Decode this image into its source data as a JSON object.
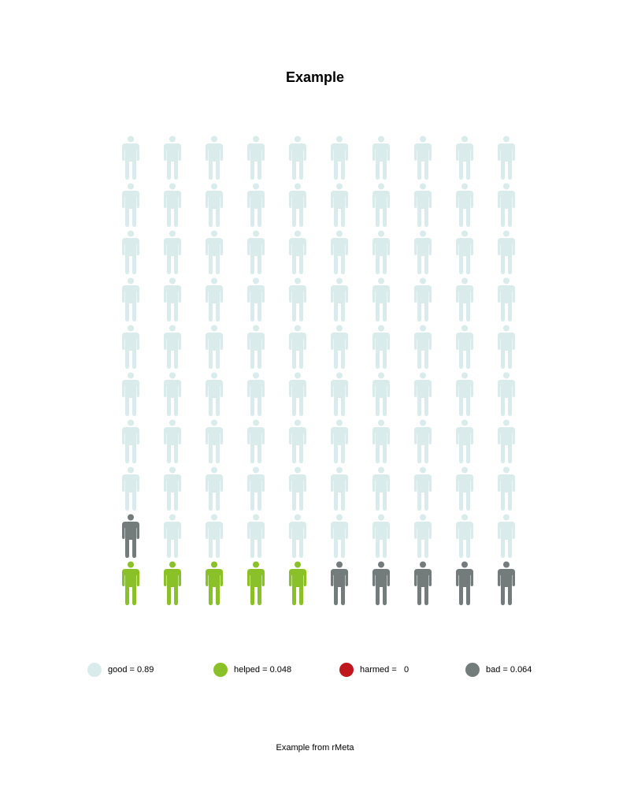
{
  "chart_data": {
    "type": "icon-array",
    "title": "Example",
    "caption": "Example from rMeta",
    "total_icons": 100,
    "columns": 10,
    "rows": 10,
    "fill_order": "bottom-up",
    "categories": [
      {
        "key": "helped",
        "label": "helped = 0.048",
        "value": 0.048,
        "count": 5,
        "color": "#8ac128"
      },
      {
        "key": "harmed",
        "label": "harmed =   0",
        "value": 0,
        "count": 0,
        "color": "#c0171f"
      },
      {
        "key": "bad",
        "label": "bad = 0.064",
        "value": 0.064,
        "count": 6,
        "color": "#737b7b"
      },
      {
        "key": "good",
        "label": "good = 0.89",
        "value": 0.89,
        "count": 89,
        "color": "#d9ebeb"
      }
    ],
    "legend_order": [
      "good",
      "helped",
      "harmed",
      "bad"
    ],
    "legend_position": "bottom"
  }
}
